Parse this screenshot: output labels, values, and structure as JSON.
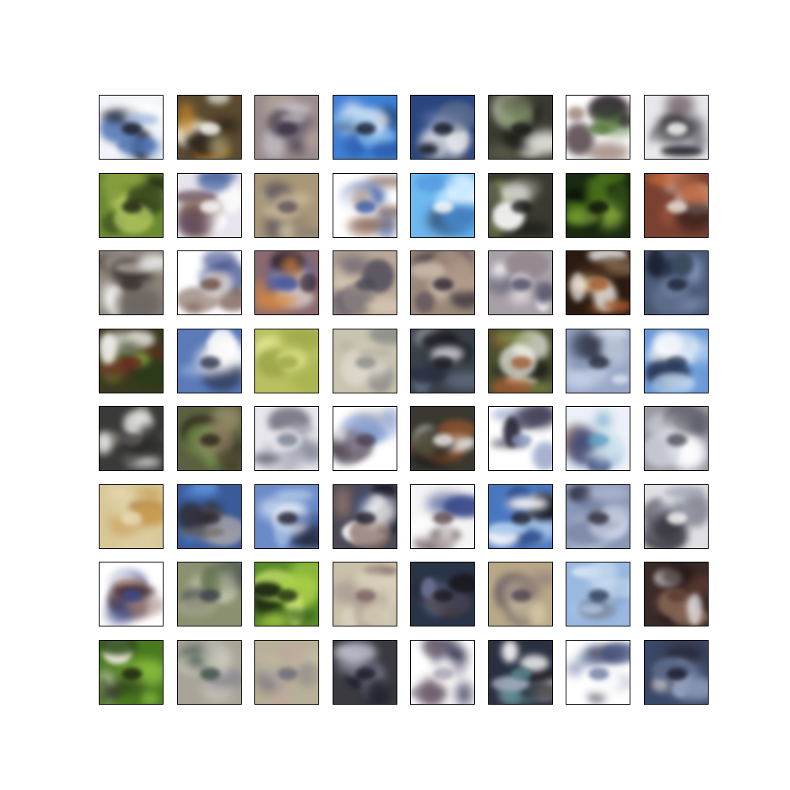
{
  "figure": {
    "rows": 8,
    "cols": 8,
    "background": "#ffffff",
    "border_color": "#000000",
    "tiles": [
      {
        "bg": "#f2f4f8",
        "palette": [
          "#9fb8dc",
          "#1a1a24",
          "#ffffff",
          "#4a6fb0"
        ]
      },
      {
        "bg": "#5a4a30",
        "palette": [
          "#c9882a",
          "#f8f8f4",
          "#2a2018",
          "#a8a070"
        ]
      },
      {
        "bg": "#9a8c8c",
        "palette": [
          "#c8c4cc",
          "#3a3440",
          "#b8a8a0",
          "#6a6070"
        ]
      },
      {
        "bg": "#3f7fd4",
        "palette": [
          "#8cc0f0",
          "#0a1830",
          "#ffffff",
          "#2a5aa8"
        ]
      },
      {
        "bg": "#2a4680",
        "palette": [
          "#9aa8c8",
          "#101420",
          "#f0f0f0",
          "#6a7890"
        ]
      },
      {
        "bg": "#3a3a30",
        "palette": [
          "#f8f8f0",
          "#1a1a18",
          "#8a9a70",
          "#5a5a48"
        ]
      },
      {
        "bg": "#ffffff",
        "palette": [
          "#4a3a40",
          "#5a7a40",
          "#2a2a30",
          "#a08a80"
        ]
      },
      {
        "bg": "#e8e8ec",
        "palette": [
          "#3a3840",
          "#ffffff",
          "#6a5a60",
          "#1a1820"
        ]
      },
      {
        "bg": "#6a8a30",
        "palette": [
          "#b4c860",
          "#1a2010",
          "#3a4a20",
          "#8aa040"
        ]
      },
      {
        "bg": "#e8e4ec",
        "palette": [
          "#5a4050",
          "#ffffff",
          "#3a5a9a",
          "#8a6a50"
        ]
      },
      {
        "bg": "#a89878",
        "palette": [
          "#c8b898",
          "#5a5058",
          "#8a8070",
          "#d0c4a8"
        ]
      },
      {
        "bg": "#ffffff",
        "palette": [
          "#7a5a50",
          "#3a5aa0",
          "#ffffff",
          "#a88a78"
        ]
      },
      {
        "bg": "#6cb8f0",
        "palette": [
          "#a8dcff",
          "#ffffff",
          "#2a3a58",
          "#4a90d8"
        ]
      },
      {
        "bg": "#3a3a30",
        "palette": [
          "#ffffff",
          "#1a1a18",
          "#7a8a50",
          "#5a5a48"
        ]
      },
      {
        "bg": "#1a2a10",
        "palette": [
          "#5a8a20",
          "#0a1008",
          "#8ab040",
          "#3a5a18"
        ]
      },
      {
        "bg": "#7a4030",
        "palette": [
          "#c86a3a",
          "#f0e8e0",
          "#2a1a18",
          "#a05a40"
        ]
      },
      {
        "bg": "#8a8478",
        "palette": [
          "#ffffff",
          "#3a3430",
          "#6a6460",
          "#b0a8a0"
        ]
      },
      {
        "bg": "#ffffff",
        "palette": [
          "#3a4a8a",
          "#6a4a40",
          "#ffffff",
          "#a89890"
        ]
      },
      {
        "bg": "#8a6a70",
        "palette": [
          "#d88a40",
          "#4a5aa0",
          "#f0e8e0",
          "#2a2030"
        ]
      },
      {
        "bg": "#b8a898",
        "palette": [
          "#d4c4b0",
          "#4a4858",
          "#8a8080",
          "#6a6070"
        ]
      },
      {
        "bg": "#9a8878",
        "palette": [
          "#c8b8a8",
          "#2a2430",
          "#6a5a60",
          "#b09888"
        ]
      },
      {
        "bg": "#a8a0a8",
        "palette": [
          "#ffffff",
          "#4a4860",
          "#8a7a80",
          "#d0c8d0"
        ]
      },
      {
        "bg": "#2a1a10",
        "palette": [
          "#ffffff",
          "#a05a30",
          "#f0d0a0",
          "#4a3020"
        ]
      },
      {
        "bg": "#4a5a78",
        "palette": [
          "#8a9ac0",
          "#1a2030",
          "#3a4858",
          "#6a7a98"
        ]
      },
      {
        "bg": "#3a3a20",
        "palette": [
          "#f0ece8",
          "#6a2a20",
          "#2a3a18",
          "#7a9a40"
        ]
      },
      {
        "bg": "#5a7ab8",
        "palette": [
          "#ffffff",
          "#2a3048",
          "#9ab0d8",
          "#f0f0f0"
        ]
      },
      {
        "bg": "#b8c060",
        "palette": [
          "#d8dc80",
          "#9ca848",
          "#e0e498",
          "#a8b450"
        ]
      },
      {
        "bg": "#c8c4b0",
        "palette": [
          "#e0dcd0",
          "#8a8a88",
          "#b0a898",
          "#d8d0c0"
        ]
      },
      {
        "bg": "#3a4048",
        "palette": [
          "#c8c8d0",
          "#1a1a20",
          "#6a7890",
          "#2a3040"
        ]
      },
      {
        "bg": "#4a5030",
        "palette": [
          "#f8f8f0",
          "#a05a30",
          "#1a1a18",
          "#8a9a50"
        ]
      },
      {
        "bg": "#9aa8c8",
        "palette": [
          "#c8d4e8",
          "#2a3040",
          "#8090b0",
          "#e0e8f4"
        ]
      },
      {
        "bg": "#6a9ad8",
        "palette": [
          "#ffffff",
          "#2a3a58",
          "#a8c8ec",
          "#f0f4fa"
        ]
      },
      {
        "bg": "#3a3a38",
        "palette": [
          "#ffffff",
          "#5a5858",
          "#2a2a28",
          "#8a8880"
        ]
      },
      {
        "bg": "#5a6040",
        "palette": [
          "#8a7a60",
          "#2a2418",
          "#7a9a50",
          "#b0a078"
        ]
      },
      {
        "bg": "#e8e8ec",
        "palette": [
          "#ffffff",
          "#7a8090",
          "#4a4858",
          "#b0b0c0"
        ]
      },
      {
        "bg": "#ffffff",
        "palette": [
          "#7a98d0",
          "#4a4050",
          "#ffffff",
          "#a8a0b0"
        ]
      },
      {
        "bg": "#3a3830",
        "palette": [
          "#a05a30",
          "#f0ece8",
          "#1a1818",
          "#6a7050"
        ]
      },
      {
        "bg": "#ffffff",
        "palette": [
          "#4a4860",
          "#8a98c0",
          "#ffffff",
          "#2a2838"
        ]
      },
      {
        "bg": "#ecf0f8",
        "palette": [
          "#3a4a7a",
          "#5aa0c0",
          "#8a6a60",
          "#ffffff"
        ]
      },
      {
        "bg": "#9a98a0",
        "palette": [
          "#d0d4e0",
          "#4a4a58",
          "#ffffff",
          "#6a6a78"
        ]
      },
      {
        "bg": "#d8c898",
        "palette": [
          "#c89a50",
          "#e8dcb8",
          "#b08a50",
          "#e0d0a8"
        ]
      },
      {
        "bg": "#3a5a98",
        "palette": [
          "#5a90d8",
          "#2a2830",
          "#a0a0a8",
          "#6a6058"
        ]
      },
      {
        "bg": "#6a8ac8",
        "palette": [
          "#b0c8e8",
          "#1a1a28",
          "#ffffff",
          "#4a68a8"
        ]
      },
      {
        "bg": "#4a4a58",
        "palette": [
          "#ffffff",
          "#1a1a28",
          "#8a7068",
          "#3a4a78"
        ]
      },
      {
        "bg": "#f4f4f4",
        "palette": [
          "#3a4a8a",
          "#5a4848",
          "#a89898",
          "#ffffff"
        ]
      },
      {
        "bg": "#4a78c0",
        "palette": [
          "#ffffff",
          "#1a1a28",
          "#a8c8ec",
          "#2a4888"
        ]
      },
      {
        "bg": "#8a98b8",
        "palette": [
          "#c8d0e4",
          "#2a2838",
          "#6a7898",
          "#b0b8d0"
        ]
      },
      {
        "bg": "#e0e0e4",
        "palette": [
          "#3a3840",
          "#ffffff",
          "#6a6878",
          "#9aa0b0"
        ]
      },
      {
        "bg": "#ffffff",
        "palette": [
          "#4a3038",
          "#3a4a8a",
          "#ffffff",
          "#a08078"
        ]
      },
      {
        "bg": "#8a9070",
        "palette": [
          "#c0c4a8",
          "#3a4048",
          "#6a7858",
          "#a0a088"
        ]
      },
      {
        "bg": "#5a8a28",
        "palette": [
          "#a8d048",
          "#1a2810",
          "#c8e070",
          "#3a6020"
        ]
      },
      {
        "bg": "#c8c0a8",
        "palette": [
          "#e0d8c4",
          "#7a6060",
          "#a89890",
          "#d8d0b8"
        ]
      },
      {
        "bg": "#2a3448",
        "palette": [
          "#6a7090",
          "#1a1a20",
          "#5a4038",
          "#3a4a6a"
        ]
      },
      {
        "bg": "#b8a888",
        "palette": [
          "#d8cca8",
          "#4a4050",
          "#8a7878",
          "#c8b898"
        ]
      },
      {
        "bg": "#9ab8e0",
        "palette": [
          "#c8dcf0",
          "#2a3850",
          "#6a88b8",
          "#e0ecf8"
        ]
      },
      {
        "bg": "#3a2a28",
        "palette": [
          "#ffffff",
          "#5a3830",
          "#1a1010",
          "#8a6a58"
        ]
      },
      {
        "bg": "#4a7a20",
        "palette": [
          "#8ac040",
          "#1a1a10",
          "#f0ece0",
          "#2a4a18"
        ]
      },
      {
        "bg": "#a8a498",
        "palette": [
          "#c8c4b8",
          "#3a5048",
          "#8a8890",
          "#d0ccc0"
        ]
      },
      {
        "bg": "#b8b098",
        "palette": [
          "#d0c8b0",
          "#6a6878",
          "#c0a8a0",
          "#a8a090"
        ]
      },
      {
        "bg": "#3a3a40",
        "palette": [
          "#d0d0dc",
          "#1a1a28",
          "#5a5a70",
          "#8a8a98"
        ]
      },
      {
        "bg": "#ffffff",
        "palette": [
          "#2a2a48",
          "#a8a0b0",
          "#ffffff",
          "#6a5a68"
        ]
      },
      {
        "bg": "#2a3040",
        "palette": [
          "#ffffff",
          "#5a8a90",
          "#1a1820",
          "#a8b0c0"
        ]
      },
      {
        "bg": "#ffffff",
        "palette": [
          "#3a4a7a",
          "#6a7aa0",
          "#ffffff",
          "#4a4858"
        ]
      },
      {
        "bg": "#3a4868",
        "palette": [
          "#8a98b8",
          "#1a1a28",
          "#ffffff",
          "#5a6888"
        ]
      }
    ]
  }
}
